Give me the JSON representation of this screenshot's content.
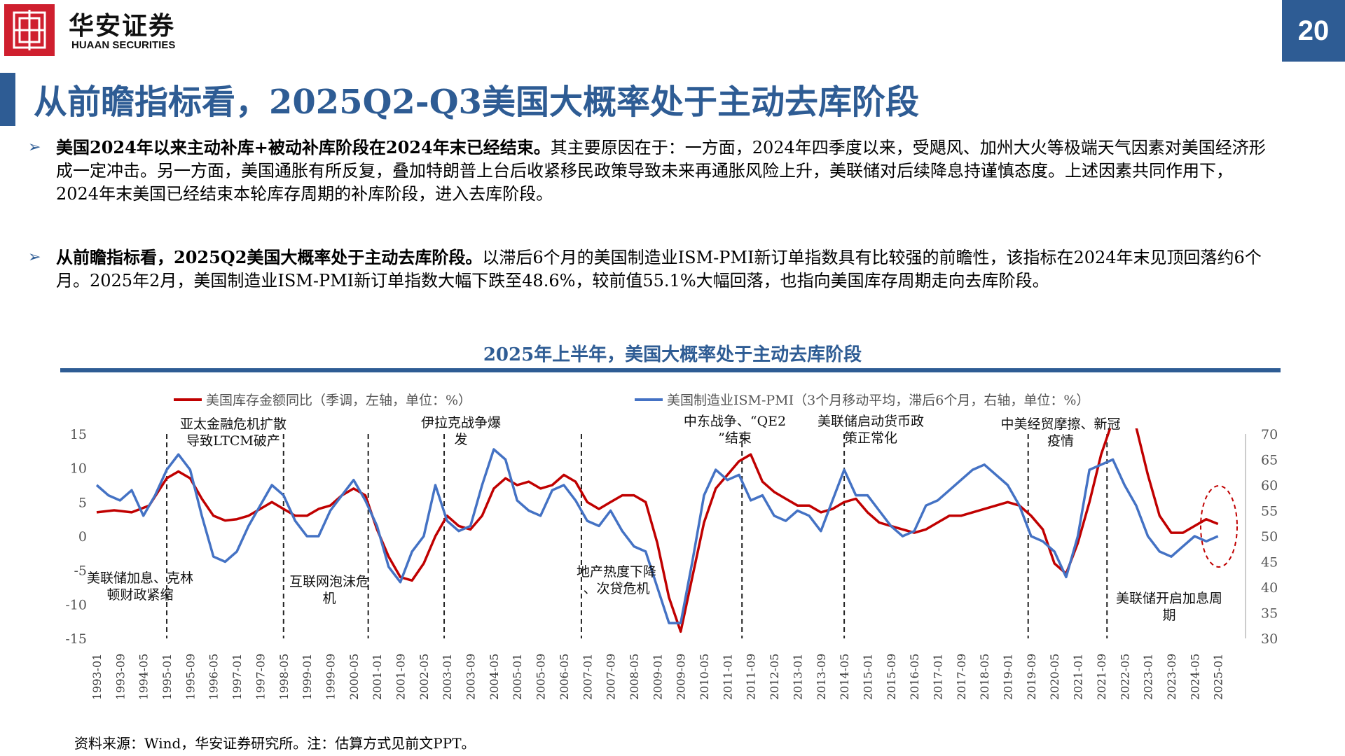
{
  "header": {
    "logo_cn": "华安证券",
    "logo_en": "HUAAN SECURITIES",
    "page_number": "20",
    "title": "从前瞻指标看，2025Q2-Q3美国大概率处于主动去库阶段",
    "brand_color": "#2e5c94",
    "logo_color": "#cf1f2e"
  },
  "bullets": [
    {
      "bold": "美国2024年以来主动补库+被动补库阶段在2024年末已经结束。",
      "text": "其主要原因在于：一方面，2024年四季度以来，受飓风、加州大火等极端天气因素对美国经济形成一定冲击。另一方面，美国通胀有所反复，叠加特朗普上台后收紧移民政策导致未来再通胀风险上升，美联储对后续降息持谨慎态度。上述因素共同作用下，2024年末美国已经结束本轮库存周期的补库阶段，进入去库阶段。"
    },
    {
      "bold": "从前瞻指标看，2025Q2美国大概率处于主动去库阶段。",
      "text": "以滞后6个月的美国制造业ISM-PMI新订单指数具有比较强的前瞻性，该指标在2024年末见顶回落约6个月。2025年2月，美国制造业ISM-PMI新订单指数大幅下跌至48.6%，较前值55.1%大幅回落，也指向美国库存周期走向去库阶段。"
    }
  ],
  "chart_data": {
    "type": "line",
    "title": "2025年上半年，美国大概率处于主动去库阶段",
    "legend_position": "top",
    "grid": false,
    "x_ticks": [
      "1993-01",
      "1993-09",
      "1994-05",
      "1995-01",
      "1995-09",
      "1996-05",
      "1997-01",
      "1997-09",
      "1998-05",
      "1999-01",
      "1999-09",
      "2000-05",
      "2001-01",
      "2001-09",
      "2002-05",
      "2003-01",
      "2003-09",
      "2004-05",
      "2005-01",
      "2005-09",
      "2006-05",
      "2007-01",
      "2007-09",
      "2008-05",
      "2009-01",
      "2009-09",
      "2010-05",
      "2011-01",
      "2011-09",
      "2012-05",
      "2013-01",
      "2013-09",
      "2014-05",
      "2015-01",
      "2015-09",
      "2016-05",
      "2017-01",
      "2017-09",
      "2018-05",
      "2019-01",
      "2019-09",
      "2020-05",
      "2021-01",
      "2021-09",
      "2022-05",
      "2023-01",
      "2023-09",
      "2024-05",
      "2025-01"
    ],
    "y_left": {
      "ticks": [
        "15",
        "10",
        "5",
        "0",
        "-5",
        "-10",
        "-15"
      ],
      "range": [
        -15,
        15
      ]
    },
    "y_right": {
      "ticks": [
        "70",
        "65",
        "60",
        "55",
        "50",
        "45",
        "40",
        "35",
        "30"
      ],
      "range": [
        30,
        70
      ]
    },
    "series": [
      {
        "name": "美国库存金额同比（季调，左轴，单位：%）",
        "axis": "left",
        "color": "#c00000",
        "points": [
          [
            "1993-01",
            3.5
          ],
          [
            "1993-07",
            3.8
          ],
          [
            "1994-01",
            3.5
          ],
          [
            "1994-07",
            4.5
          ],
          [
            "1995-01",
            8.5
          ],
          [
            "1995-05",
            9.5
          ],
          [
            "1995-09",
            8.5
          ],
          [
            "1996-01",
            5.5
          ],
          [
            "1996-05",
            3
          ],
          [
            "1996-09",
            2.3
          ],
          [
            "1997-01",
            2.5
          ],
          [
            "1997-05",
            3
          ],
          [
            "1997-09",
            4
          ],
          [
            "1998-01",
            5
          ],
          [
            "1998-05",
            4
          ],
          [
            "1998-09",
            3
          ],
          [
            "1999-01",
            3
          ],
          [
            "1999-05",
            4
          ],
          [
            "1999-09",
            4.5
          ],
          [
            "2000-01",
            6
          ],
          [
            "2000-05",
            7
          ],
          [
            "2000-09",
            6
          ],
          [
            "2001-01",
            1
          ],
          [
            "2001-05",
            -3
          ],
          [
            "2001-09",
            -6
          ],
          [
            "2002-01",
            -6.5
          ],
          [
            "2002-05",
            -4
          ],
          [
            "2002-09",
            0
          ],
          [
            "2003-01",
            3
          ],
          [
            "2003-05",
            1.5
          ],
          [
            "2003-09",
            1
          ],
          [
            "2004-01",
            3
          ],
          [
            "2004-05",
            7
          ],
          [
            "2004-09",
            8.5
          ],
          [
            "2005-01",
            7.5
          ],
          [
            "2005-05",
            8
          ],
          [
            "2005-09",
            7
          ],
          [
            "2006-01",
            7.5
          ],
          [
            "2006-05",
            9
          ],
          [
            "2006-09",
            8
          ],
          [
            "2007-01",
            5
          ],
          [
            "2007-05",
            4
          ],
          [
            "2007-09",
            5
          ],
          [
            "2008-01",
            6
          ],
          [
            "2008-05",
            6
          ],
          [
            "2008-09",
            5
          ],
          [
            "2009-01",
            -1
          ],
          [
            "2009-05",
            -9
          ],
          [
            "2009-09",
            -14
          ],
          [
            "2010-01",
            -6
          ],
          [
            "2010-05",
            2
          ],
          [
            "2010-09",
            7
          ],
          [
            "2011-01",
            9
          ],
          [
            "2011-05",
            11
          ],
          [
            "2011-09",
            12
          ],
          [
            "2012-01",
            8
          ],
          [
            "2012-05",
            6.5
          ],
          [
            "2012-09",
            5.5
          ],
          [
            "2013-01",
            4.5
          ],
          [
            "2013-05",
            4.5
          ],
          [
            "2013-09",
            3.5
          ],
          [
            "2014-01",
            4
          ],
          [
            "2014-05",
            5
          ],
          [
            "2014-09",
            5.5
          ],
          [
            "2015-01",
            3.5
          ],
          [
            "2015-05",
            2
          ],
          [
            "2015-09",
            1.5
          ],
          [
            "2016-01",
            1
          ],
          [
            "2016-05",
            0.5
          ],
          [
            "2016-09",
            1
          ],
          [
            "2017-01",
            2
          ],
          [
            "2017-05",
            3
          ],
          [
            "2017-09",
            3
          ],
          [
            "2018-01",
            3.5
          ],
          [
            "2018-05",
            4
          ],
          [
            "2018-09",
            4.5
          ],
          [
            "2019-01",
            5
          ],
          [
            "2019-05",
            4.5
          ],
          [
            "2019-09",
            3
          ],
          [
            "2020-01",
            1
          ],
          [
            "2020-05",
            -4
          ],
          [
            "2020-09",
            -5.5
          ],
          [
            "2021-01",
            -1
          ],
          [
            "2021-05",
            5
          ],
          [
            "2021-09",
            12
          ],
          [
            "2022-01",
            17
          ],
          [
            "2022-05",
            20
          ],
          [
            "2022-09",
            16
          ],
          [
            "2023-01",
            9
          ],
          [
            "2023-05",
            3
          ],
          [
            "2023-09",
            0.5
          ],
          [
            "2024-01",
            0.5
          ],
          [
            "2024-05",
            1.5
          ],
          [
            "2024-09",
            2.5
          ],
          [
            "2025-01",
            1.8
          ]
        ]
      },
      {
        "name": "美国制造业ISM-PMI（3个月移动平均，滞后6个月，右轴，单位：%）",
        "axis": "right",
        "color": "#4472c4",
        "points": [
          [
            "1993-01",
            60
          ],
          [
            "1993-05",
            58
          ],
          [
            "1993-09",
            57
          ],
          [
            "1994-01",
            59
          ],
          [
            "1994-05",
            54
          ],
          [
            "1994-09",
            58
          ],
          [
            "1995-01",
            63
          ],
          [
            "1995-05",
            66
          ],
          [
            "1995-09",
            63
          ],
          [
            "1996-01",
            54
          ],
          [
            "1996-05",
            46
          ],
          [
            "1996-09",
            45
          ],
          [
            "1997-01",
            47
          ],
          [
            "1997-05",
            52
          ],
          [
            "1997-09",
            56
          ],
          [
            "1998-01",
            60
          ],
          [
            "1998-05",
            58
          ],
          [
            "1998-09",
            53
          ],
          [
            "1999-01",
            50
          ],
          [
            "1999-05",
            50
          ],
          [
            "1999-09",
            55
          ],
          [
            "2000-01",
            58
          ],
          [
            "2000-05",
            61
          ],
          [
            "2000-09",
            57
          ],
          [
            "2001-01",
            52
          ],
          [
            "2001-05",
            44
          ],
          [
            "2001-09",
            41
          ],
          [
            "2002-01",
            47
          ],
          [
            "2002-05",
            50
          ],
          [
            "2002-09",
            60
          ],
          [
            "2003-01",
            53
          ],
          [
            "2003-05",
            51
          ],
          [
            "2003-09",
            52
          ],
          [
            "2004-01",
            60
          ],
          [
            "2004-05",
            67
          ],
          [
            "2004-09",
            65
          ],
          [
            "2005-01",
            57
          ],
          [
            "2005-05",
            55
          ],
          [
            "2005-09",
            54
          ],
          [
            "2006-01",
            59
          ],
          [
            "2006-05",
            60
          ],
          [
            "2006-09",
            57
          ],
          [
            "2007-01",
            53
          ],
          [
            "2007-05",
            52
          ],
          [
            "2007-09",
            55
          ],
          [
            "2008-01",
            51
          ],
          [
            "2008-05",
            48
          ],
          [
            "2008-09",
            47
          ],
          [
            "2009-01",
            40
          ],
          [
            "2009-05",
            33
          ],
          [
            "2009-09",
            33
          ],
          [
            "2010-01",
            45
          ],
          [
            "2010-05",
            58
          ],
          [
            "2010-09",
            63
          ],
          [
            "2011-01",
            61
          ],
          [
            "2011-05",
            62
          ],
          [
            "2011-09",
            57
          ],
          [
            "2012-01",
            58
          ],
          [
            "2012-05",
            54
          ],
          [
            "2012-09",
            53
          ],
          [
            "2013-01",
            55
          ],
          [
            "2013-05",
            54
          ],
          [
            "2013-09",
            51
          ],
          [
            "2014-01",
            57
          ],
          [
            "2014-05",
            63
          ],
          [
            "2014-09",
            58
          ],
          [
            "2015-01",
            58
          ],
          [
            "2015-05",
            55
          ],
          [
            "2015-09",
            52
          ],
          [
            "2016-01",
            50
          ],
          [
            "2016-05",
            51
          ],
          [
            "2016-09",
            56
          ],
          [
            "2017-01",
            57
          ],
          [
            "2017-05",
            59
          ],
          [
            "2017-09",
            61
          ],
          [
            "2018-01",
            63
          ],
          [
            "2018-05",
            64
          ],
          [
            "2018-09",
            62
          ],
          [
            "2019-01",
            60
          ],
          [
            "2019-05",
            56
          ],
          [
            "2019-09",
            50
          ],
          [
            "2020-01",
            49
          ],
          [
            "2020-05",
            47
          ],
          [
            "2020-09",
            42
          ],
          [
            "2021-01",
            50
          ],
          [
            "2021-05",
            63
          ],
          [
            "2021-09",
            64
          ],
          [
            "2022-01",
            65
          ],
          [
            "2022-05",
            60
          ],
          [
            "2022-09",
            56
          ],
          [
            "2023-01",
            50
          ],
          [
            "2023-05",
            47
          ],
          [
            "2023-09",
            46
          ],
          [
            "2024-01",
            48
          ],
          [
            "2024-05",
            50
          ],
          [
            "2024-09",
            49
          ],
          [
            "2025-01",
            50
          ]
        ]
      }
    ],
    "annotations": [
      {
        "text": "美联储加息、克林顿财政紧缩"
      },
      {
        "text": "亚太金融危机扩散导致LTCM破产"
      },
      {
        "text": "互联网泡沫危机"
      },
      {
        "text": "伊拉克战争爆发"
      },
      {
        "text": "地产热度下降、次贷危机"
      },
      {
        "text": "中东战争、“QE2”结束"
      },
      {
        "text": "美联储启动货币政策正常化"
      },
      {
        "text": "中美经贸摩擦、新冠疫情"
      },
      {
        "text": "美联储开启加息周期"
      }
    ]
  },
  "source": "资料来源：Wind，华安证券研究所。注：估算方式见前文PPT。"
}
